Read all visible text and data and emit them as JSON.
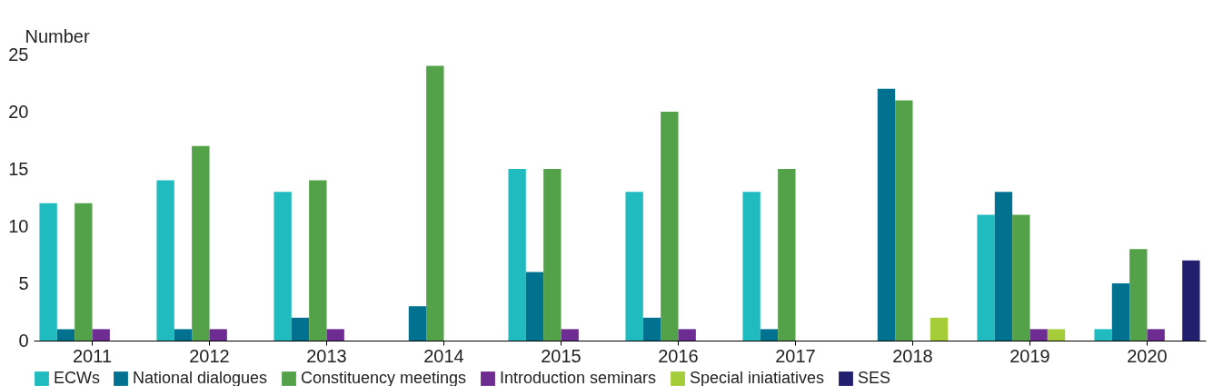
{
  "chart_data": {
    "type": "bar",
    "ylabel": "Number",
    "categories": [
      "2011",
      "2012",
      "2013",
      "2014",
      "2015",
      "2016",
      "2017",
      "2018",
      "2019",
      "2020"
    ],
    "series": [
      {
        "name": "ECWs",
        "color": "#1fbbbf",
        "values": [
          12,
          14,
          13,
          null,
          15,
          13,
          13,
          null,
          11,
          1
        ]
      },
      {
        "name": "National dialogues",
        "color": "#00728f",
        "values": [
          1,
          1,
          2,
          3,
          6,
          2,
          1,
          22,
          13,
          5
        ]
      },
      {
        "name": "Constituency meetings",
        "color": "#53a249",
        "values": [
          12,
          17,
          14,
          24,
          15,
          20,
          15,
          21,
          11,
          8
        ]
      },
      {
        "name": "Introduction seminars",
        "color": "#6c2c91",
        "values": [
          1,
          1,
          1,
          null,
          1,
          1,
          null,
          null,
          1,
          1
        ]
      },
      {
        "name": "Special iniatiatives",
        "color": "#a5cd39",
        "values": [
          null,
          null,
          null,
          null,
          null,
          null,
          null,
          2,
          1,
          null
        ]
      },
      {
        "name": "SES",
        "color": "#231f6f",
        "values": [
          null,
          null,
          null,
          null,
          null,
          null,
          null,
          null,
          null,
          7
        ]
      }
    ],
    "ylim": [
      0,
      25
    ],
    "yticks": [
      0,
      5,
      10,
      15,
      20,
      25
    ],
    "grid": false,
    "legend": "bottom"
  }
}
